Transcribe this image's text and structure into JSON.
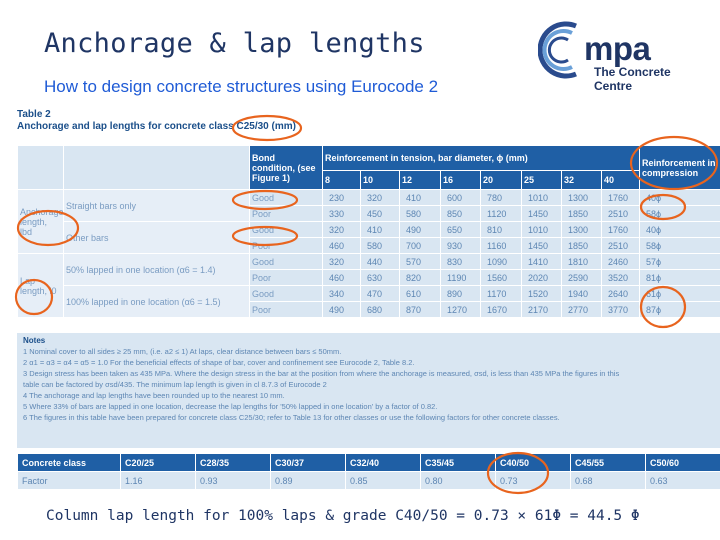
{
  "slide": {
    "title": "Anchorage & lap lengths",
    "subtitle": "How to design concrete structures using Eurocode 2",
    "caption": "Column lap length for 100% laps & grade C40/50 = 0.73 × 61Φ = 44.5 Φ"
  },
  "logo": {
    "name": "mpa",
    "subtitle": "The Concrete Centre",
    "colors": [
      "#2a4b8d",
      "#6aa0d8"
    ]
  },
  "table": {
    "caption_line1": "Table 2",
    "caption_line2": "Anchorage and lap lengths for concrete class C25/30 (mm)",
    "header": {
      "bond": "Bond condition, (see Figure 1)",
      "tension": "Reinforcement in tension, bar diameter, ϕ (mm)",
      "compression": "Reinforcement in compression",
      "diameters": [
        "8",
        "10",
        "12",
        "16",
        "20",
        "25",
        "32",
        "40"
      ]
    },
    "groups": {
      "anchorage": "Anchorage length, lbd",
      "lap": "Lap length, l0"
    },
    "rows": [
      {
        "type": "Straight bars only",
        "bond": "Good",
        "values": [
          "230",
          "320",
          "410",
          "600",
          "780",
          "1010",
          "1300",
          "1760"
        ],
        "comp": "40ϕ"
      },
      {
        "type": "",
        "bond": "Poor",
        "values": [
          "330",
          "450",
          "580",
          "850",
          "1120",
          "1450",
          "1850",
          "2510"
        ],
        "comp": "58ϕ"
      },
      {
        "type": "Other bars",
        "bond": "Good",
        "values": [
          "320",
          "410",
          "490",
          "650",
          "810",
          "1010",
          "1300",
          "1760"
        ],
        "comp": "40ϕ"
      },
      {
        "type": "",
        "bond": "Poor",
        "values": [
          "460",
          "580",
          "700",
          "930",
          "1160",
          "1450",
          "1850",
          "2510"
        ],
        "comp": "58ϕ"
      },
      {
        "type": "50% lapped in one location (α6 = 1.4)",
        "bond": "Good",
        "values": [
          "320",
          "440",
          "570",
          "830",
          "1090",
          "1410",
          "1810",
          "2460"
        ],
        "comp": "57ϕ"
      },
      {
        "type": "",
        "bond": "Poor",
        "values": [
          "460",
          "630",
          "820",
          "1190",
          "1560",
          "2020",
          "2590",
          "3520"
        ],
        "comp": "81ϕ"
      },
      {
        "type": "100% lapped in one location (α6 = 1.5)",
        "bond": "Good",
        "values": [
          "340",
          "470",
          "610",
          "890",
          "1170",
          "1520",
          "1940",
          "2640"
        ],
        "comp": "61ϕ"
      },
      {
        "type": "",
        "bond": "Poor",
        "values": [
          "490",
          "680",
          "870",
          "1270",
          "1670",
          "2170",
          "2770",
          "3770"
        ],
        "comp": "87ϕ"
      }
    ]
  },
  "notes": {
    "title": "Notes",
    "items": [
      "1  Nominal cover to all sides ≥ 25 mm, (i.e. a2 ≤ 1) At laps, clear distance between bars ≤ 50mm.",
      "2  α1 = α3 = α4 = α5 = 1.0  For the beneficial effects of shape of bar, cover and confinement see Eurocode 2, Table 8.2.",
      "3  Design stress has been taken as 435 MPa. Where the design stress in the bar at the position from where the anchorage is measured, σsd, is less than 435 MPa the figures in this",
      "    table can be factored by σsd/435. The minimum lap length is given in cl 8.7.3 of Eurocode 2",
      "4  The anchorage and lap lengths have been rounded up to the nearest 10 mm.",
      "5  Where 33% of bars are lapped in one location, decrease the lap lengths for '50% lapped in one location' by a factor of 0.82.",
      "6  The figures in this table have been prepared for concrete class C25/30; refer to Table 13 for other classes or use the following factors for other concrete classes."
    ]
  },
  "factors": {
    "class_label": "Concrete class",
    "factor_label": "Factor",
    "classes": [
      "C20/25",
      "C28/35",
      "C30/37",
      "C32/40",
      "C35/45",
      "C40/50",
      "C45/55",
      "C50/60"
    ],
    "values": [
      "1.16",
      "0.93",
      "0.89",
      "0.85",
      "0.80",
      "0.73",
      "0.68",
      "0.63"
    ]
  },
  "highlight_color": "#e8641e"
}
